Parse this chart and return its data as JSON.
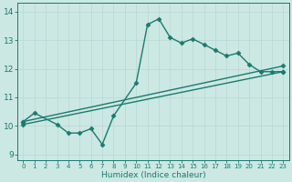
{
  "xlabel": "Humidex (Indice chaleur)",
  "xlim": [
    -0.5,
    23.5
  ],
  "ylim": [
    8.8,
    14.3
  ],
  "xticks": [
    0,
    1,
    2,
    3,
    4,
    5,
    6,
    7,
    8,
    9,
    10,
    11,
    12,
    13,
    14,
    15,
    16,
    17,
    18,
    19,
    20,
    21,
    22,
    23
  ],
  "yticks": [
    9,
    10,
    11,
    12,
    13,
    14
  ],
  "line_color": "#1a7a6e",
  "bg_color": "#cce8e3",
  "grid_color": "#b8d8d3",
  "line1_x": [
    0,
    1,
    3,
    4,
    5,
    6,
    7,
    8,
    10,
    11,
    12,
    13,
    14,
    15,
    16,
    17,
    18,
    19,
    20,
    21,
    22,
    23
  ],
  "line1_y": [
    10.15,
    10.45,
    10.05,
    9.75,
    9.75,
    9.9,
    9.35,
    10.35,
    11.5,
    13.55,
    13.75,
    13.1,
    12.9,
    13.05,
    12.85,
    12.65,
    12.45,
    12.55,
    12.15,
    11.9,
    11.9,
    11.9
  ],
  "line2_x": [
    0,
    23
  ],
  "line2_y": [
    10.05,
    11.9
  ],
  "line3_x": [
    0,
    23
  ],
  "line3_y": [
    10.15,
    12.1
  ],
  "marker": "D",
  "markersize": 2.5,
  "linewidth": 1.0
}
